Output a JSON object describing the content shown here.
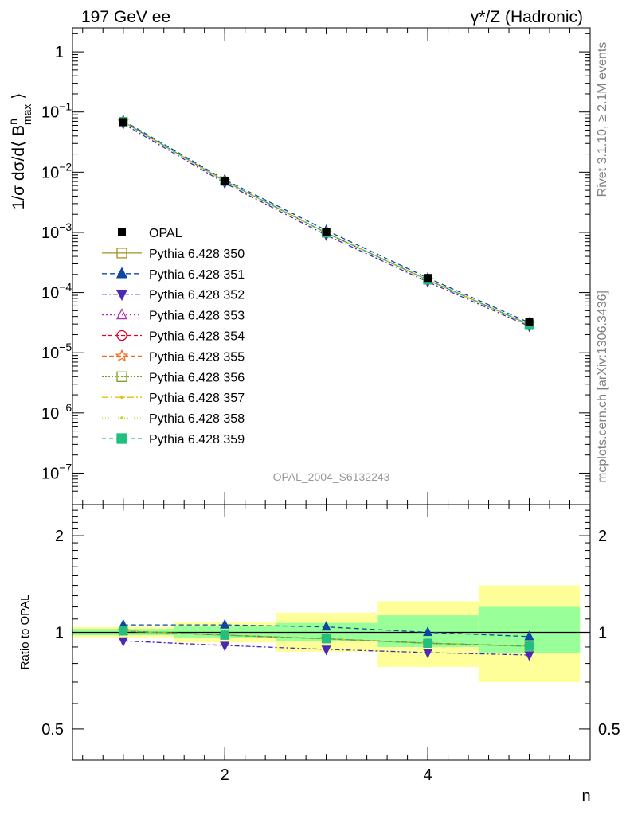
{
  "header": {
    "left": "197 GeV ee",
    "right": "γ*/Z (Hadronic)"
  },
  "side_labels": {
    "rivet": "Rivet 3.1.10, ≥ 2.1M events",
    "mcplots": "mcplots.cern.ch [arXiv:1306.3436]"
  },
  "watermark": "OPAL_2004_S6132243",
  "colors": {
    "data": "#000000",
    "band_inner": "#99ff99",
    "band_outer": "#ffff99"
  },
  "chart_data": [
    {
      "type": "line",
      "panel": "main",
      "y_scale": "log",
      "ylabel": "1/σ dσ/d⟨ B^n_max ⟩",
      "xlim": [
        0.5,
        5.6
      ],
      "ylim": [
        3e-08,
        2.5
      ],
      "y_ticks": [
        {
          "value": 1,
          "label": "1"
        },
        {
          "value": 0.1,
          "label": "10",
          "exp": "−1"
        },
        {
          "value": 0.01,
          "label": "10",
          "exp": "−2"
        },
        {
          "value": 0.001,
          "label": "10",
          "exp": "−3"
        },
        {
          "value": 0.0001,
          "label": "10",
          "exp": "−4"
        },
        {
          "value": 1e-05,
          "label": "10",
          "exp": "−5"
        },
        {
          "value": 1e-06,
          "label": "10",
          "exp": "−6"
        },
        {
          "value": 1e-07,
          "label": "10",
          "exp": "−7"
        }
      ],
      "x": [
        1,
        2,
        3,
        4,
        5
      ],
      "data": {
        "name": "OPAL",
        "values": [
          0.068,
          0.0072,
          0.00102,
          0.000175,
          3.25e-05
        ]
      },
      "series": [
        {
          "name": "Pythia 6.428 350",
          "color": "#a09020",
          "dash": "",
          "marker": "square-open",
          "values": [
            0.069,
            0.0071,
            0.00098,
            0.000162,
            2.94e-05
          ]
        },
        {
          "name": "Pythia 6.428 351",
          "color": "#0d47a1",
          "dash": "6,4",
          "marker": "triangle-up",
          "values": [
            0.072,
            0.0075,
            0.00108,
            0.000175,
            3.16e-05
          ]
        },
        {
          "name": "Pythia 6.428 352",
          "color": "#4c28b6",
          "dash": "6,3,2,3",
          "marker": "triangle-down",
          "values": [
            0.064,
            0.0066,
            0.0009,
            0.000151,
            2.76e-05
          ]
        },
        {
          "name": "Pythia 6.428 353",
          "color": "#b030b0",
          "dash": "2,3",
          "marker": "triangle-open",
          "values": [
            0.069,
            0.0071,
            0.00098,
            0.000162,
            2.94e-05
          ]
        },
        {
          "name": "Pythia 6.428 354",
          "color": "#e0002a",
          "dash": "5,3",
          "marker": "circle-open",
          "values": [
            0.069,
            0.0071,
            0.00098,
            0.000162,
            2.94e-05
          ]
        },
        {
          "name": "Pythia 6.428 355",
          "color": "#f07020",
          "dash": "6,3",
          "marker": "star-open",
          "values": [
            0.069,
            0.0071,
            0.00098,
            0.000162,
            2.94e-05
          ]
        },
        {
          "name": "Pythia 6.428 356",
          "color": "#7e9a1a",
          "dash": "2,2",
          "marker": "square-open",
          "values": [
            0.069,
            0.0071,
            0.00098,
            0.000162,
            2.94e-05
          ]
        },
        {
          "name": "Pythia 6.428 357",
          "color": "#e8c000",
          "dash": "8,3,2,3",
          "marker": "dot",
          "values": [
            0.069,
            0.0071,
            0.00098,
            0.000162,
            2.94e-05
          ]
        },
        {
          "name": "Pythia 6.428 358",
          "color": "#c8d020",
          "dash": "1,3",
          "marker": "dot",
          "values": [
            0.069,
            0.0071,
            0.00098,
            0.000162,
            2.94e-05
          ]
        },
        {
          "name": "Pythia 6.428 359",
          "color": "#20c080",
          "dash": "5,4",
          "marker": "square",
          "values": [
            0.069,
            0.0071,
            0.00098,
            0.000162,
            2.94e-05
          ]
        }
      ],
      "legend_position": "middle-left"
    },
    {
      "type": "line",
      "panel": "ratio",
      "y_scale": "log",
      "ylabel": "Ratio to OPAL",
      "xlabel": "n",
      "xlim": [
        0.5,
        5.6
      ],
      "ylim": [
        0.4,
        2.5
      ],
      "y_ticks": [
        {
          "value": 0.5,
          "label": "0.5"
        },
        {
          "value": 1,
          "label": "1"
        },
        {
          "value": 2,
          "label": "2"
        }
      ],
      "x_ticks": [
        {
          "value": 2,
          "label": "2"
        },
        {
          "value": 4,
          "label": "4"
        }
      ],
      "bins": [
        [
          0.5,
          1.5
        ],
        [
          1.5,
          2.5
        ],
        [
          2.5,
          3.5
        ],
        [
          3.5,
          4.5
        ],
        [
          4.5,
          5.5
        ]
      ],
      "band_inner": [
        [
          0.98,
          1.025
        ],
        [
          0.96,
          1.045
        ],
        [
          0.94,
          1.07
        ],
        [
          0.9,
          1.13
        ],
        [
          0.86,
          1.2
        ]
      ],
      "band_outer": [
        [
          0.965,
          1.04
        ],
        [
          0.93,
          1.08
        ],
        [
          0.87,
          1.15
        ],
        [
          0.78,
          1.25
        ],
        [
          0.7,
          1.4
        ]
      ],
      "series": [
        {
          "name": "Pythia 6.428 350",
          "values": [
            1.01,
            0.98,
            0.955,
            0.925,
            0.905
          ]
        },
        {
          "name": "Pythia 6.428 351",
          "values": [
            1.055,
            1.055,
            1.04,
            1.0,
            0.97
          ]
        },
        {
          "name": "Pythia 6.428 352",
          "values": [
            0.94,
            0.91,
            0.885,
            0.865,
            0.85
          ]
        },
        {
          "name": "Pythia 6.428 353",
          "values": [
            1.01,
            0.98,
            0.955,
            0.925,
            0.905
          ]
        },
        {
          "name": "Pythia 6.428 354",
          "values": [
            1.01,
            0.98,
            0.955,
            0.925,
            0.905
          ]
        },
        {
          "name": "Pythia 6.428 355",
          "values": [
            1.01,
            0.98,
            0.955,
            0.925,
            0.905
          ]
        },
        {
          "name": "Pythia 6.428 356",
          "values": [
            1.01,
            0.98,
            0.955,
            0.925,
            0.905
          ]
        },
        {
          "name": "Pythia 6.428 357",
          "values": [
            1.01,
            0.98,
            0.955,
            0.925,
            0.905
          ]
        },
        {
          "name": "Pythia 6.428 358",
          "values": [
            1.01,
            0.98,
            0.955,
            0.925,
            0.905
          ]
        },
        {
          "name": "Pythia 6.428 359",
          "values": [
            1.01,
            0.98,
            0.955,
            0.925,
            0.905
          ]
        }
      ]
    }
  ]
}
